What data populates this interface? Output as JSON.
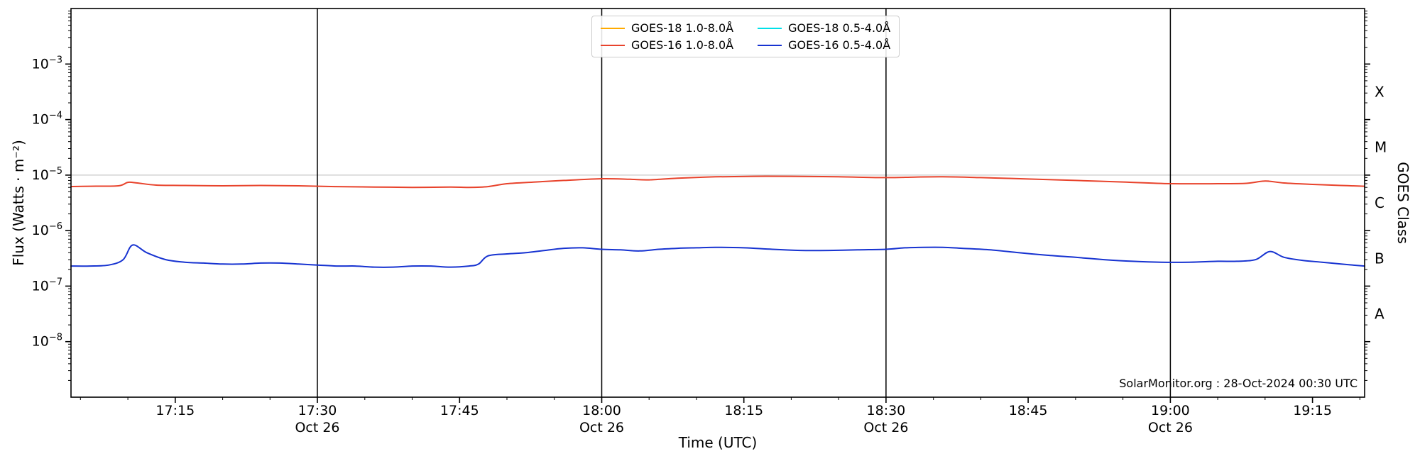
{
  "chart_data": {
    "type": "line",
    "title": "",
    "xlabel": "Time (UTC)",
    "ylabel": "Flux (Watts · m⁻²)",
    "ylabel_right": "GOES Class",
    "annotation": "SolarMonitor.org : 28-Oct-2024 00:30 UTC",
    "x_unit": "minutes of day (UTC), Oct 26",
    "x_range": [
      1024,
      1160.5
    ],
    "y_range": [
      1e-09,
      0.01
    ],
    "y_scale": "log",
    "grid": "horizontal line at 1e-5 only",
    "legend_position": "top-center, 2 columns",
    "y_tick_exponents": [
      -3,
      -4,
      -5,
      -6,
      -7,
      -8
    ],
    "x_ticks": [
      {
        "label": "17:15",
        "minute": 1035
      },
      {
        "label": "17:30",
        "minute": 1050,
        "sublabel": "Oct 26"
      },
      {
        "label": "17:45",
        "minute": 1065
      },
      {
        "label": "18:00",
        "minute": 1080,
        "sublabel": "Oct 26"
      },
      {
        "label": "18:15",
        "minute": 1095
      },
      {
        "label": "18:30",
        "minute": 1110,
        "sublabel": "Oct 26"
      },
      {
        "label": "18:45",
        "minute": 1125
      },
      {
        "label": "19:00",
        "minute": 1140,
        "sublabel": "Oct 26"
      },
      {
        "label": "19:15",
        "minute": 1155
      }
    ],
    "vertical_lines_minutes": [
      1050,
      1080,
      1110,
      1140
    ],
    "gridlines": [
      1e-05
    ],
    "goes_classes": [
      {
        "label": "X",
        "log_center": -3.5
      },
      {
        "label": "M",
        "log_center": -4.5
      },
      {
        "label": "C",
        "log_center": -5.5
      },
      {
        "label": "B",
        "log_center": -6.5
      },
      {
        "label": "A",
        "log_center": -7.5
      }
    ],
    "series": [
      {
        "name": "GOES-18 1.0-8.0Å",
        "color": "#ffaa00",
        "x": [],
        "y": []
      },
      {
        "name": "GOES-16 1.0-8.0Å",
        "color": "#e8432c",
        "x": [
          1024,
          1026,
          1029,
          1030,
          1031,
          1033,
          1036,
          1040,
          1044,
          1048,
          1052,
          1056,
          1060,
          1064,
          1066,
          1068,
          1070,
          1073,
          1076,
          1080,
          1083,
          1085,
          1088,
          1092,
          1096,
          1100,
          1105,
          1110,
          1113,
          1116,
          1120,
          1125,
          1130,
          1135,
          1140,
          1145,
          1148,
          1150,
          1152,
          1155,
          1158,
          1160.5
        ],
        "y": [
          6.2e-06,
          6.3e-06,
          6.4e-06,
          7.4e-06,
          7.2e-06,
          6.6e-06,
          6.5e-06,
          6.4e-06,
          6.5e-06,
          6.4e-06,
          6.2e-06,
          6.1e-06,
          6e-06,
          6.1e-06,
          6e-06,
          6.2e-06,
          7e-06,
          7.5e-06,
          8e-06,
          8.6e-06,
          8.4e-06,
          8.2e-06,
          8.8e-06,
          9.3e-06,
          9.5e-06,
          9.5e-06,
          9.3e-06,
          9e-06,
          9.2e-06,
          9.3e-06,
          9e-06,
          8.5e-06,
          8e-06,
          7.5e-06,
          7e-06,
          7e-06,
          7.1e-06,
          7.8e-06,
          7.2e-06,
          6.8e-06,
          6.5e-06,
          6.3e-06
        ]
      },
      {
        "name": "GOES-18 0.5-4.0Å",
        "color": "#00e0e8",
        "x": [],
        "y": []
      },
      {
        "name": "GOES-16 0.5-4.0Å",
        "color": "#1733d1",
        "x": [
          1024,
          1026,
          1028,
          1029.5,
          1030.5,
          1032,
          1034,
          1036,
          1038,
          1040,
          1042,
          1044,
          1046,
          1048,
          1050,
          1052,
          1054,
          1056,
          1058,
          1060,
          1062,
          1064,
          1066,
          1067,
          1068,
          1070,
          1072,
          1074,
          1076,
          1078,
          1080,
          1082,
          1084,
          1086,
          1088,
          1090,
          1092,
          1095,
          1098,
          1101,
          1104,
          1107,
          1110,
          1112,
          1114,
          1116,
          1118,
          1121,
          1124,
          1127,
          1130,
          1133,
          1136,
          1139,
          1142,
          1145,
          1147,
          1149,
          1150.5,
          1152,
          1154,
          1156,
          1158,
          1160.5
        ],
        "y": [
          2.3e-07,
          2.3e-07,
          2.4e-07,
          3e-07,
          5.5e-07,
          4e-07,
          3e-07,
          2.7e-07,
          2.6e-07,
          2.5e-07,
          2.5e-07,
          2.6e-07,
          2.6e-07,
          2.5e-07,
          2.4e-07,
          2.3e-07,
          2.3e-07,
          2.2e-07,
          2.2e-07,
          2.3e-07,
          2.3e-07,
          2.2e-07,
          2.3e-07,
          2.5e-07,
          3.5e-07,
          3.8e-07,
          4e-07,
          4.4e-07,
          4.8e-07,
          4.9e-07,
          4.6e-07,
          4.5e-07,
          4.3e-07,
          4.6e-07,
          4.8e-07,
          4.9e-07,
          5e-07,
          4.9e-07,
          4.6e-07,
          4.4e-07,
          4.4e-07,
          4.5e-07,
          4.6e-07,
          4.9e-07,
          5e-07,
          5e-07,
          4.8e-07,
          4.5e-07,
          4e-07,
          3.6e-07,
          3.3e-07,
          3e-07,
          2.8e-07,
          2.7e-07,
          2.7e-07,
          2.8e-07,
          2.8e-07,
          3e-07,
          4.2e-07,
          3.3e-07,
          2.9e-07,
          2.7e-07,
          2.5e-07,
          2.3e-07
        ]
      }
    ]
  }
}
